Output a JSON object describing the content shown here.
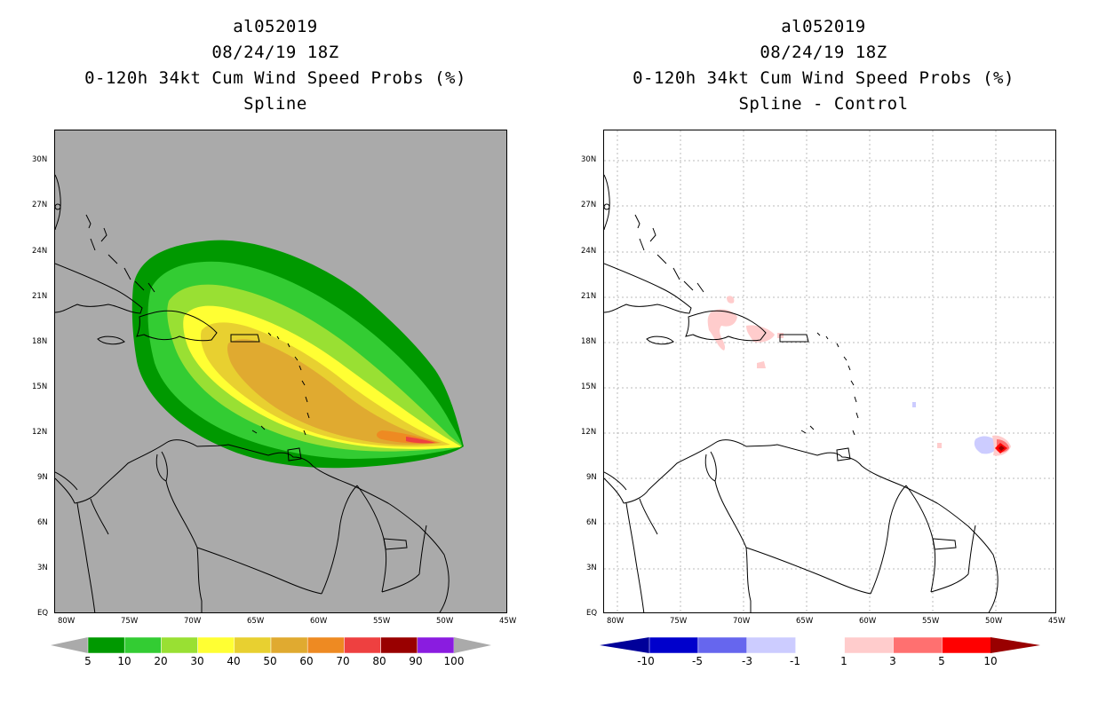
{
  "left_panel": {
    "title_lines": [
      "al052019",
      "08/24/19 18Z",
      "0-120h 34kt Cum Wind Speed Probs (%)",
      "Spline"
    ],
    "colorbar": {
      "labels": [
        "5",
        "10",
        "20",
        "30",
        "40",
        "50",
        "60",
        "70",
        "80",
        "90",
        "100"
      ],
      "colors": [
        "#009900",
        "#33cc33",
        "#99e033",
        "#ffff33",
        "#e8d030",
        "#e0aa30",
        "#ee8a22",
        "#ee4040",
        "#990000",
        "#8a1ce0"
      ],
      "end_color": "#aaaaaa"
    }
  },
  "right_panel": {
    "title_lines": [
      "al052019",
      "08/24/19 18Z",
      "0-120h 34kt Cum Wind Speed Probs (%)",
      "Spline - Control"
    ],
    "colorbar": {
      "labels": [
        "-10",
        "-5",
        "-3",
        "-1",
        "1",
        "3",
        "5",
        "10"
      ],
      "colors": [
        "#0000cc",
        "#6666ee",
        "#ccccff",
        "#ffffff",
        "#ffcccc",
        "#ff7070",
        "#ff0000"
      ],
      "end_colors": [
        "#000099",
        "#990000"
      ]
    }
  },
  "axes": {
    "lat_labels": [
      "30N",
      "27N",
      "24N",
      "21N",
      "18N",
      "15N",
      "12N",
      "9N",
      "6N",
      "3N",
      "EQ"
    ],
    "lon_labels": [
      "80W",
      "75W",
      "70W",
      "65W",
      "60W",
      "55W",
      "50W",
      "45W"
    ]
  }
}
